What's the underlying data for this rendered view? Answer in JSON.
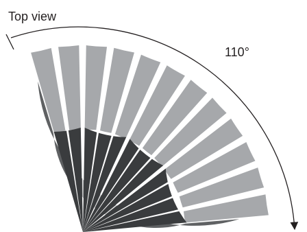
{
  "labels": {
    "view": "Top view",
    "angle": "110°"
  },
  "fan": {
    "sweep_degrees": 110,
    "blade_count": 12,
    "colors": {
      "outer": "#a6a8ab",
      "middle": "#5f6163",
      "inner": "#3a3c3e",
      "stroke": "#231f20",
      "background": "#ffffff"
    }
  }
}
